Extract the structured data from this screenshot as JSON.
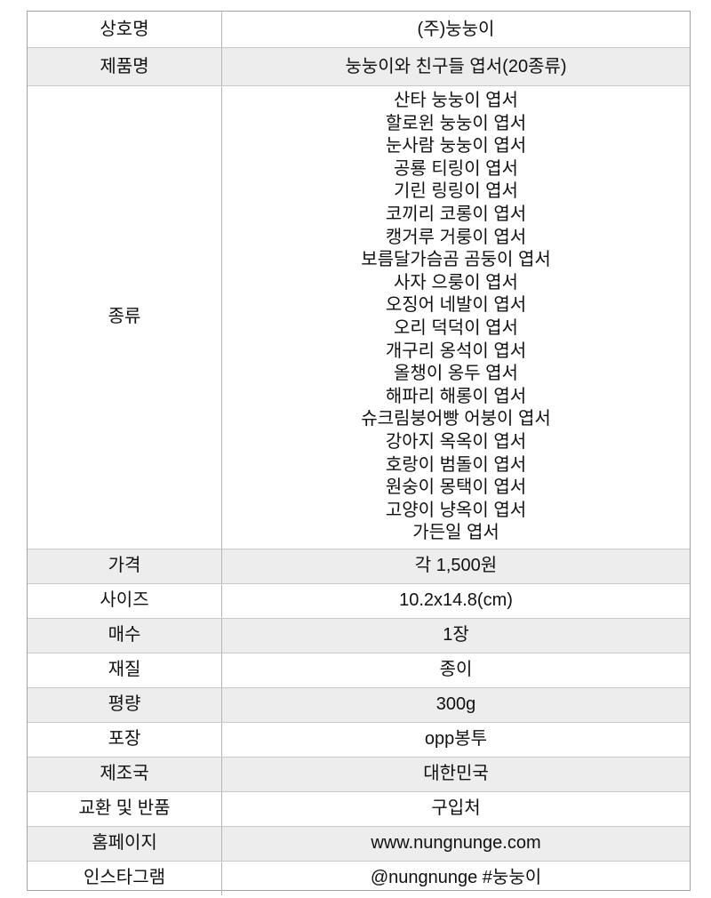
{
  "table": {
    "colors": {
      "row_alt_bg": "#ededed",
      "border_outer": "#a3a3a3",
      "border_inner": "#c9c9c9",
      "divider_vertical": "#b5b5b5",
      "text": "#111111"
    },
    "rows": [
      {
        "label": "상호명",
        "value": "(주)눙눙이"
      },
      {
        "label": "제품명",
        "value": "눙눙이와 친구들 엽서(20종류)"
      },
      {
        "label": "종류"
      },
      {
        "label": "가격",
        "value": "각 1,500원"
      },
      {
        "label": "사이즈",
        "value": "10.2x14.8(cm)"
      },
      {
        "label": "매수",
        "value": "1장"
      },
      {
        "label": "재질",
        "value": "종이"
      },
      {
        "label": "평량",
        "value": "300g"
      },
      {
        "label": "포장",
        "value": "opp봉투"
      },
      {
        "label": "제조국",
        "value": "대한민국"
      },
      {
        "label": "교환 및 반품",
        "value": "구입처"
      },
      {
        "label": "홈페이지",
        "value": "www.nungnunge.com"
      },
      {
        "label": "인스타그램",
        "value": "@nungnunge #눙눙이"
      }
    ],
    "types": {
      "items": [
        "산타 눙눙이 엽서",
        "할로윈 눙눙이 엽서",
        "눈사람 눙눙이 엽서",
        "공룡 티링이 엽서",
        "기린 링링이 엽서",
        "코끼리 코롱이 엽서",
        "캥거루 거룽이 엽서",
        "보름달가슴곰 곰둥이 엽서",
        "사자 으룽이 엽서",
        "오징어 네발이 엽서",
        "오리 덕덕이 엽서",
        "개구리 옹석이 엽서",
        "올챙이 옹두 엽서",
        "해파리 해롱이 엽서",
        "슈크림붕어빵 어붕이 엽서",
        "강아지 옥옥이 엽서",
        "호랑이 범돌이 엽서",
        "원숭이 몽택이 엽서",
        "고양이 냥옥이 엽서",
        "가든일 엽서"
      ]
    }
  }
}
